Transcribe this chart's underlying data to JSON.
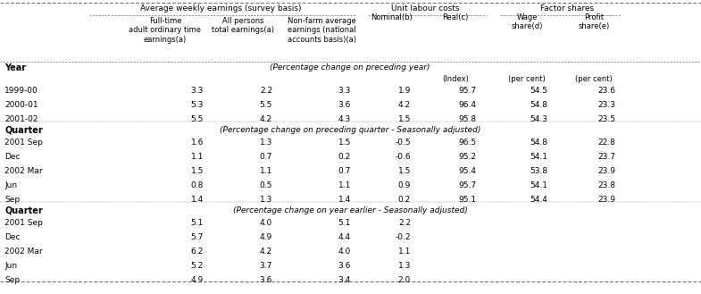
{
  "col_headers": {
    "group1": "Average weekly earnings (survey basis)",
    "group2": "Unit labour costs",
    "group3": "Factor shares"
  },
  "sub_col1": "Full-time\nadult ordinary time\nearnings(a)",
  "sub_col2": "All persons\ntotal earnings(a)",
  "sub_col3": "Non-farm average\nearnings (national\naccounts basis)(a)",
  "sub_col4": "Nominal(b)",
  "sub_col5": "Real(c)",
  "sub_col6": "Wage\nshare(d)",
  "sub_col7": "Profit\nshare(e)",
  "unit_col5": "(Index)",
  "unit_col6": "(per cent)",
  "unit_col7": "(per cent)",
  "section1_label": "Year",
  "section1_note": "(Percentage change on preceding year)",
  "section1_rows": [
    [
      "1999-00",
      "3.3",
      "2.2",
      "3.3",
      "1.9",
      "95.7",
      "54.5",
      "23.6"
    ],
    [
      "2000-01",
      "5.3",
      "5.5",
      "3.6",
      "4.2",
      "96.4",
      "54.8",
      "23.3"
    ],
    [
      "2001-02",
      "5.5",
      "4.2",
      "4.3",
      "1.5",
      "95.8",
      "54.3",
      "23.5"
    ]
  ],
  "section2_label": "Quarter",
  "section2_note": "(Percentage change on preceding quarter - Seasonally adjusted)",
  "section2_rows": [
    [
      "2001 Sep",
      "1.6",
      "1.3",
      "1.5",
      "-0.5",
      "96.5",
      "54.8",
      "22.8"
    ],
    [
      "Dec",
      "1.1",
      "0.7",
      "0.2",
      "-0.6",
      "95.2",
      "54.1",
      "23.7"
    ],
    [
      "2002 Mar",
      "1.5",
      "1.1",
      "0.7",
      "1.5",
      "95.4",
      "53.8",
      "23.9"
    ],
    [
      "Jun",
      "0.8",
      "0.5",
      "1.1",
      "0.9",
      "95.7",
      "54.1",
      "23.8"
    ],
    [
      "Sep",
      "1.4",
      "1.3",
      "1.4",
      "0.2",
      "95.1",
      "54.4",
      "23.9"
    ]
  ],
  "section3_label": "Quarter",
  "section3_note": "(Percentage change on year earlier - Seasonally adjusted)",
  "section3_rows": [
    [
      "2001 Sep",
      "5.1",
      "4.0",
      "5.1",
      "2.2"
    ],
    [
      "Dec",
      "5.7",
      "4.9",
      "4.4",
      "-0.2"
    ],
    [
      "2002 Mar",
      "6.2",
      "4.2",
      "4.0",
      "1.1"
    ],
    [
      "Jun",
      "5.2",
      "3.7",
      "3.6",
      "1.3"
    ],
    [
      "Sep",
      "4.9",
      "3.6",
      "3.4",
      "2.0"
    ]
  ],
  "bg_color": "#ffffff",
  "line_color": "#666666",
  "fontsize_header": 6.5,
  "fontsize_sub": 6.0,
  "fontsize_data": 6.5,
  "fontsize_label": 7.0
}
